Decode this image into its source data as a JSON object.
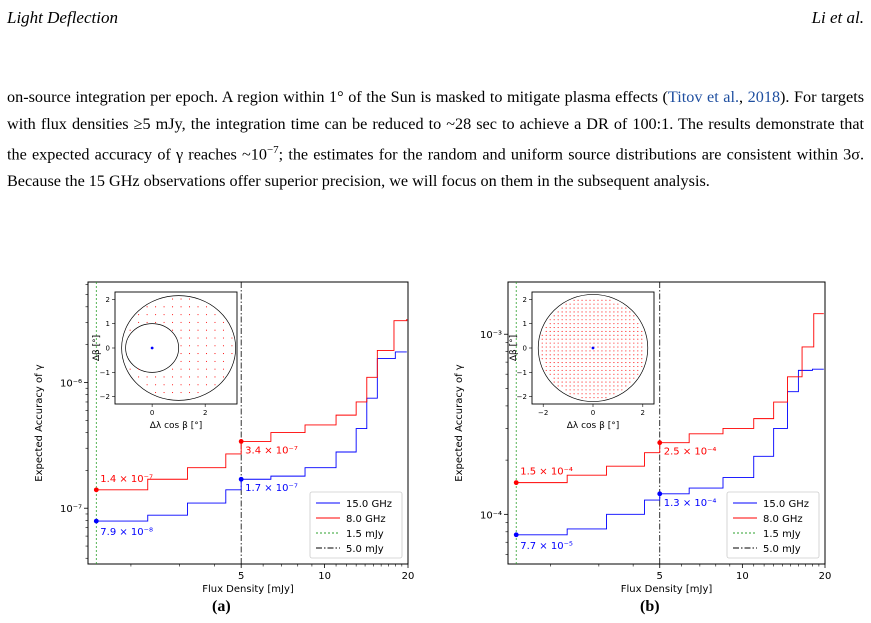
{
  "header": {
    "left": "Light Deflection",
    "right": "Li et al."
  },
  "paragraph": {
    "s1": "on-source integration per epoch. A region within 1° of the Sun is masked to mitigate plasma effects (",
    "cite": "Titov et al.",
    "cite_sep": ", ",
    "cite_year": "2018",
    "s2": "). For targets with flux densities ≥5 mJy, the integration time can be reduced to ~28 sec to achieve a DR of 100:1. The results demonstrate that the expected accuracy of γ reaches ~10",
    "exp": "−7",
    "s3": "; the estimates for the random and uniform source distributions are consistent within 3σ. Because the 15 GHz observations offer superior precision, we will focus on them in the subsequent analysis."
  },
  "colors": {
    "ghz15": "#0000ff",
    "ghz8": "#ff0000",
    "mjy15": "#2ca02c",
    "mjy5": "#000000"
  },
  "chart_data": [
    {
      "type": "line",
      "caption": "(a)",
      "xlabel": "Flux Density [mJy]",
      "ylabel": "Expected Accuracy of γ",
      "xscale": "log",
      "yscale": "log",
      "xlim": [
        1.4,
        20
      ],
      "ylim": [
        3.6e-08,
        6.3e-06
      ],
      "xticks": [
        5,
        10,
        20
      ],
      "yticks": [
        {
          "v": 1e-07,
          "label": "10⁻⁷"
        },
        {
          "v": 1e-06,
          "label": "10⁻⁶"
        }
      ],
      "legend": {
        "position": "lower-right",
        "entries": [
          "15.0 GHz",
          "8.0 GHz",
          "1.5 mJy",
          "5.0 mJy"
        ]
      },
      "vlines": [
        {
          "x": 1.5,
          "name": "1.5 mJy"
        },
        {
          "x": 5,
          "name": "5.0 mJy"
        }
      ],
      "series": [
        {
          "name": "15.0 GHz",
          "x": [
            1.5,
            2.3,
            3.2,
            4.4,
            5.0,
            6.4,
            8.5,
            11.0,
            13.0,
            14.2,
            15.5,
            18.0,
            19.8
          ],
          "y": [
            7.9e-08,
            8.8e-08,
            1.1e-07,
            1.4e-07,
            1.7e-07,
            1.8e-07,
            2.1e-07,
            2.8e-07,
            4.3e-07,
            7.5e-07,
            1.55e-06,
            1.75e-06,
            1.75e-06
          ]
        },
        {
          "name": "8.0 GHz",
          "x": [
            1.5,
            2.3,
            3.2,
            4.4,
            5.0,
            6.4,
            8.5,
            11.0,
            13.0,
            14.2,
            15.5,
            17.8,
            19.8
          ],
          "y": [
            1.4e-07,
            1.7e-07,
            2.1e-07,
            2.7e-07,
            3.4e-07,
            4e-07,
            4.6e-07,
            5.5e-07,
            7e-07,
            1.1e-06,
            1.8e-06,
            3.1e-06,
            3.2e-06
          ]
        }
      ],
      "annotations": [
        {
          "x": 1.5,
          "y": 1.4e-07,
          "text": "1.4 × 10⁻⁷",
          "series": "8.0 GHz"
        },
        {
          "x": 1.5,
          "y": 7.9e-08,
          "text": "7.9 × 10⁻⁸",
          "series": "15.0 GHz"
        },
        {
          "x": 5,
          "y": 3.4e-07,
          "text": "3.4 × 10⁻⁷",
          "series": "8.0 GHz"
        },
        {
          "x": 5,
          "y": 1.7e-07,
          "text": "1.7 × 10⁻⁷",
          "series": "15.0 GHz"
        }
      ],
      "inset": {
        "xlabel": "Δλ cos β [°]",
        "ylabel": "Δβ [°]",
        "xticks": [
          0,
          2
        ],
        "yticks": [
          -2,
          -1,
          0,
          1,
          2
        ],
        "xlim": [
          -1.4,
          3.2
        ],
        "ylim": [
          -2.3,
          2.3
        ],
        "big_circle": {
          "cx": 1,
          "cy": 0,
          "r": 2.15
        },
        "small_circle": {
          "cx": 0,
          "cy": 0,
          "r": 1
        },
        "sun": [
          0,
          0
        ],
        "points": "uniform grid of red dots inside big circle, masked inside small circle"
      }
    },
    {
      "type": "line",
      "caption": "(b)",
      "xlabel": "Flux Density [mJy]",
      "ylabel": "Expected Accuracy of γ",
      "xscale": "log",
      "yscale": "log",
      "xlim": [
        1.4,
        20
      ],
      "ylim": [
        5.3e-05,
        0.00195
      ],
      "xticks": [
        5,
        10,
        20
      ],
      "yticks": [
        {
          "v": 0.0001,
          "label": "10⁻⁴"
        },
        {
          "v": 0.001,
          "label": "10⁻³"
        }
      ],
      "legend": {
        "position": "lower-right",
        "entries": [
          "15.0 GHz",
          "8.0 GHz",
          "1.5 mJy",
          "5.0 mJy"
        ]
      },
      "vlines": [
        {
          "x": 1.5,
          "name": "1.5 mJy"
        },
        {
          "x": 5,
          "name": "5.0 mJy"
        }
      ],
      "series": [
        {
          "name": "15.0 GHz",
          "x": [
            1.5,
            2.3,
            3.2,
            4.4,
            5.0,
            6.4,
            8.5,
            11.0,
            13.0,
            14.6,
            16.0,
            18.0,
            19.8
          ],
          "y": [
            7.7e-05,
            8.3e-05,
            0.0001,
            0.00012,
            0.00013,
            0.00014,
            0.00016,
            0.00021,
            0.0003,
            0.00048,
            0.00063,
            0.00064,
            0.00064
          ]
        },
        {
          "name": "8.0 GHz",
          "x": [
            1.5,
            2.3,
            3.2,
            4.4,
            5.0,
            6.4,
            8.5,
            11.0,
            13.0,
            14.6,
            16.5,
            18.2,
            19.8
          ],
          "y": [
            0.00015,
            0.000165,
            0.000185,
            0.00022,
            0.00025,
            0.00028,
            0.0003,
            0.00034,
            0.00042,
            0.00058,
            0.00085,
            0.0013,
            0.0013
          ]
        }
      ],
      "annotations": [
        {
          "x": 1.5,
          "y": 0.00015,
          "text": "1.5 × 10⁻⁴",
          "series": "8.0 GHz"
        },
        {
          "x": 1.5,
          "y": 7.7e-05,
          "text": "7.7 × 10⁻⁵",
          "series": "15.0 GHz"
        },
        {
          "x": 5,
          "y": 0.00025,
          "text": "2.5 × 10⁻⁴",
          "series": "8.0 GHz"
        },
        {
          "x": 5,
          "y": 0.00013,
          "text": "1.3 × 10⁻⁴",
          "series": "15.0 GHz"
        }
      ],
      "inset": {
        "xlabel": "Δλ cos β [°]",
        "ylabel": "Δβ [°]",
        "xticks": [
          -2,
          0,
          2
        ],
        "yticks": [
          -2,
          -1,
          0,
          1,
          2
        ],
        "xlim": [
          -2.45,
          2.45
        ],
        "ylim": [
          -2.3,
          2.3
        ],
        "big_circle": {
          "cx": 0,
          "cy": 0,
          "r": 2.2
        },
        "sun": [
          0,
          0
        ],
        "points": "dense uniform grid of red dots inside circle"
      }
    }
  ]
}
